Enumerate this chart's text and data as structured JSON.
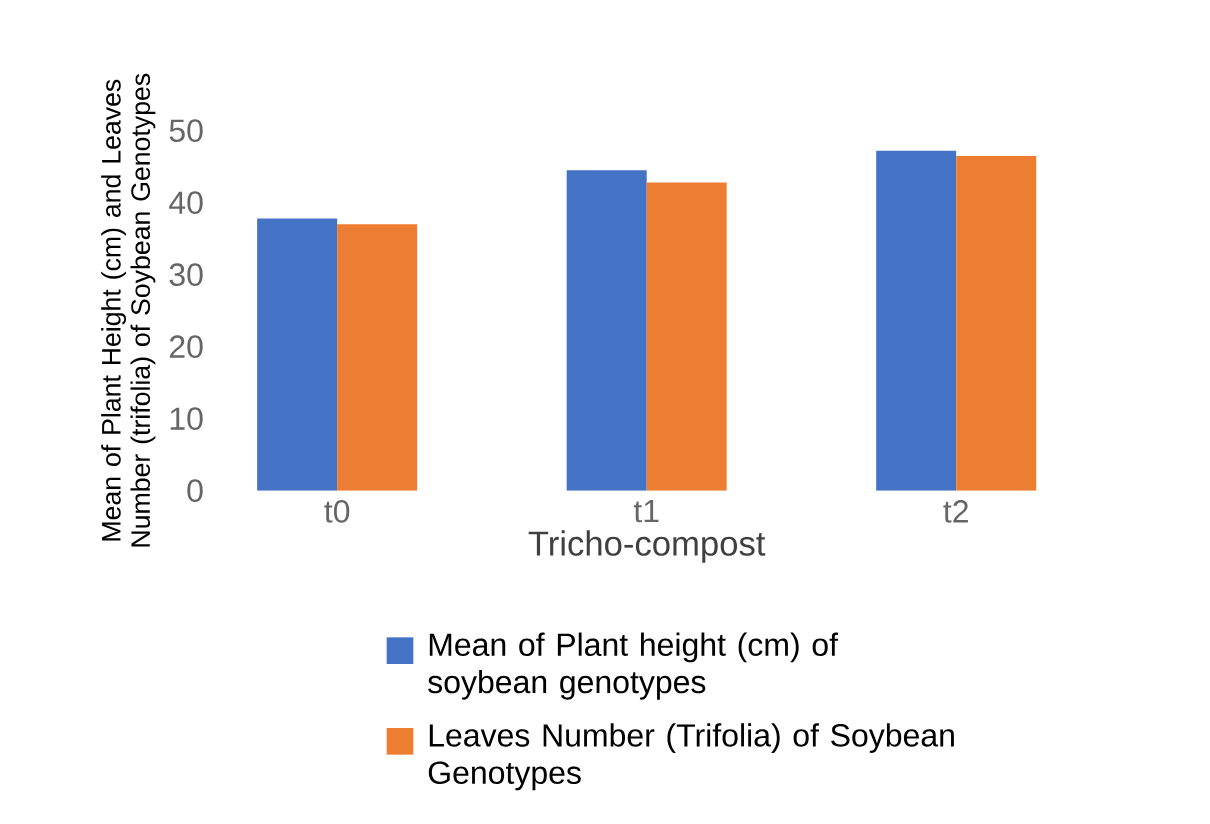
{
  "chart_data": {
    "type": "bar",
    "xlabel": "Tricho-compost",
    "ylabel": "Mean of Plant Height (cm) and Leaves Number (trifolia) of Soybean Genotypes",
    "categories": [
      "t0",
      "t1",
      "t2"
    ],
    "series": [
      {
        "name": "Mean of Plant height (cm) of soybean genotypes",
        "color": "#4472c4",
        "values": [
          37.8,
          44.5,
          47.2
        ]
      },
      {
        "name": "Leaves Number (Trifolia) of Soybean Genotypes",
        "color": "#ed7d31",
        "values": [
          37.0,
          42.8,
          46.5
        ]
      }
    ],
    "ylim": [
      0,
      50
    ],
    "yticks": [
      0,
      10,
      20,
      30,
      40,
      50
    ],
    "grid": false,
    "legend": "bottom"
  }
}
